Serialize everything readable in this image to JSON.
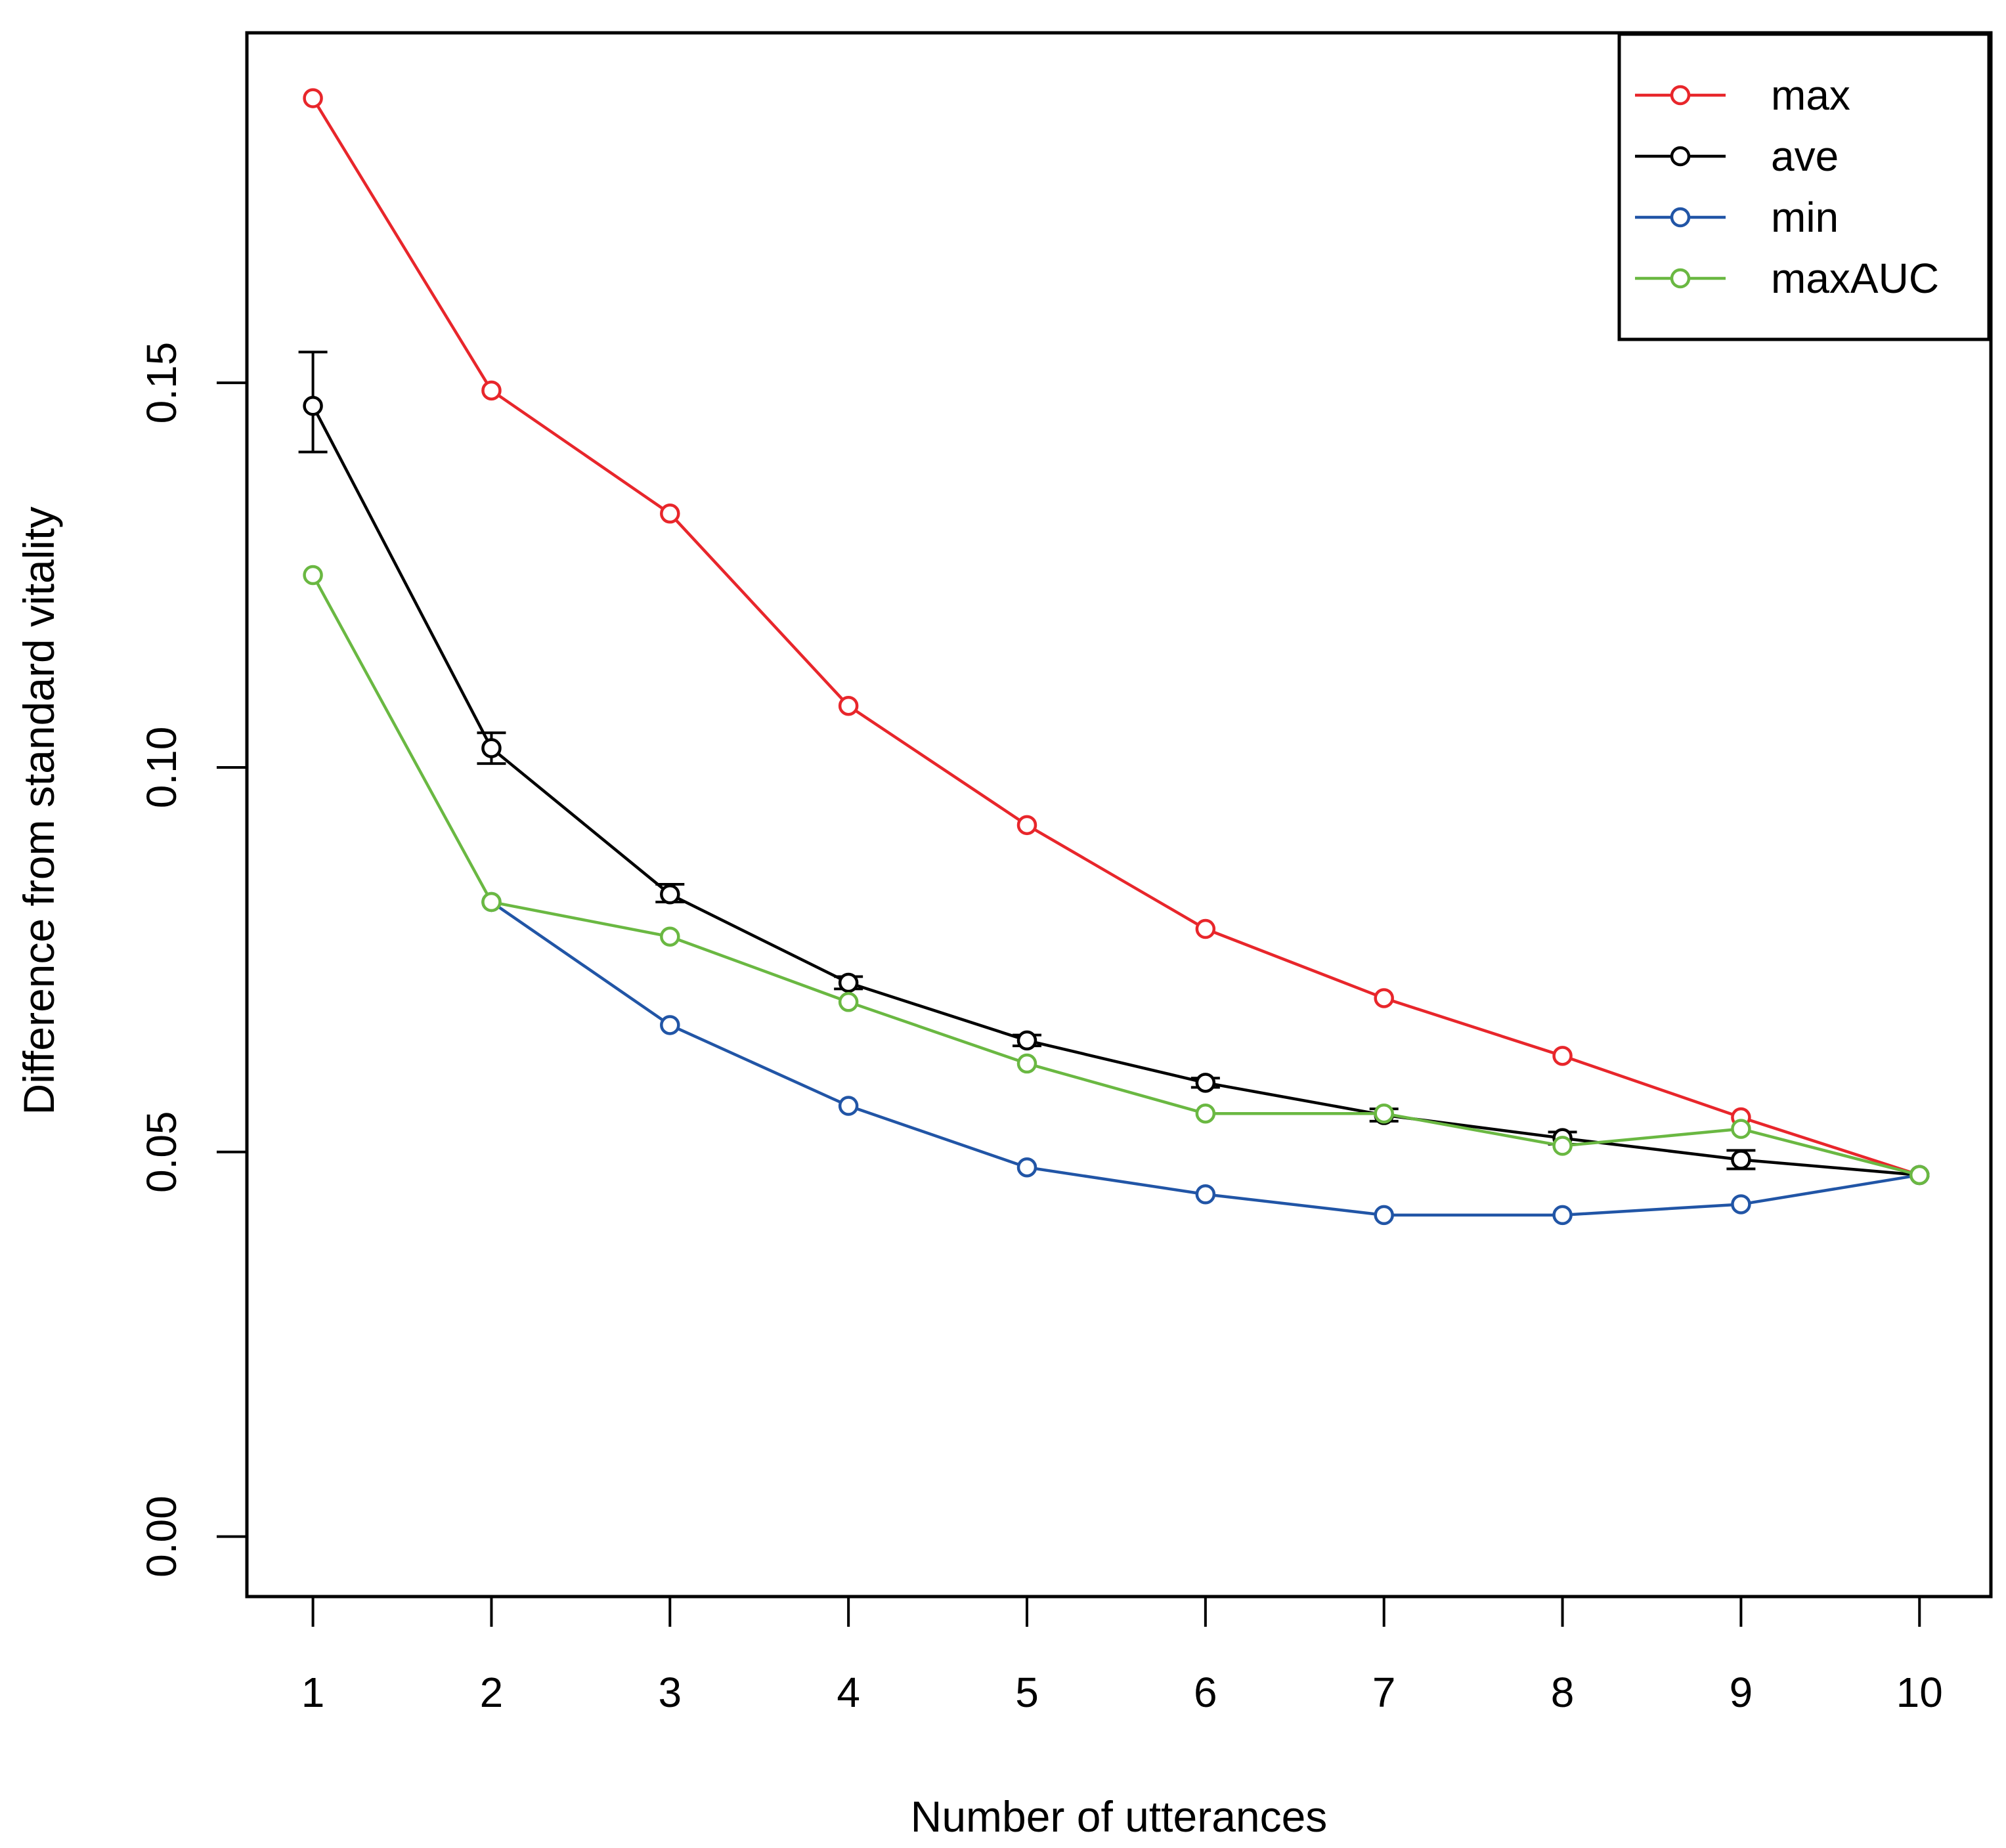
{
  "chart_data": {
    "type": "line",
    "title": "",
    "xlabel": "Number of utterances",
    "ylabel": "Difference from standard vitality",
    "x": [
      1,
      2,
      3,
      4,
      5,
      6,
      7,
      8,
      9,
      10
    ],
    "x_tick_labels": [
      "1",
      "2",
      "3",
      "4",
      "5",
      "6",
      "7",
      "8",
      "9",
      "10"
    ],
    "y_ticks": [
      0.0,
      0.05,
      0.1,
      0.15
    ],
    "y_tick_labels": [
      "0.00",
      "0.05",
      "0.10",
      "0.15"
    ],
    "xlim": [
      0.63,
      10.4
    ],
    "ylim": [
      -0.0078,
      0.1955
    ],
    "grid": false,
    "legend_position": "top-right",
    "series": [
      {
        "name": "max",
        "color": "#e8262b",
        "values": [
          0.187,
          0.149,
          0.133,
          0.108,
          0.0925,
          0.079,
          0.07,
          0.0625,
          0.0545,
          0.047
        ]
      },
      {
        "name": "ave",
        "color": "#000000",
        "values": [
          0.147,
          0.1025,
          0.0835,
          0.072,
          0.0645,
          0.059,
          0.0548,
          0.0518,
          0.049,
          0.047
        ],
        "error_bars": [
          [
            0.141,
            0.154
          ],
          [
            0.1005,
            0.1045
          ],
          [
            0.0825,
            0.0848
          ],
          [
            0.0712,
            0.0728
          ],
          [
            0.0638,
            0.0652
          ],
          [
            0.0584,
            0.0596
          ],
          [
            0.054,
            0.0556
          ],
          [
            0.051,
            0.0526
          ],
          [
            0.0478,
            0.0502
          ],
          null
        ]
      },
      {
        "name": "min",
        "color": "#2155a6",
        "values": [
          null,
          0.0825,
          0.0665,
          0.056,
          0.048,
          0.0445,
          0.0418,
          0.0418,
          0.0432,
          0.047
        ]
      },
      {
        "name": "maxAUC",
        "color": "#6ab842",
        "values": [
          0.125,
          0.0825,
          0.078,
          0.0695,
          0.0615,
          0.055,
          0.055,
          0.0508,
          0.053,
          0.047
        ]
      }
    ]
  }
}
